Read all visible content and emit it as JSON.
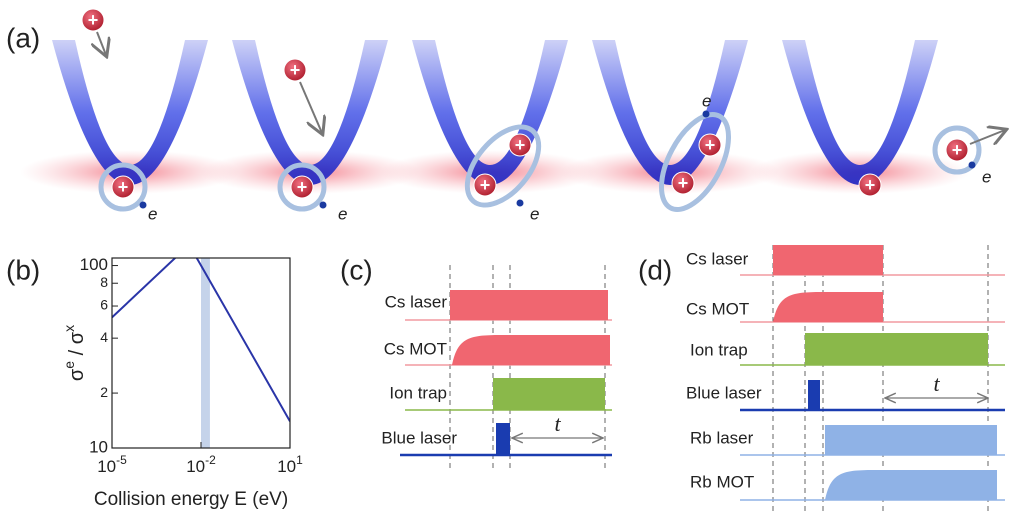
{
  "panel_a": {
    "label": "(a)",
    "ion_symbol": "+",
    "electron": "e"
  },
  "panel_b": {
    "label": "(b)"
  },
  "chart_data": {
    "type": "line",
    "xlabel": "Collision energy E (eV)",
    "ylabel": [
      "σ",
      "e",
      " / σ",
      "x"
    ],
    "x": [
      1e-05,
      0.004,
      10
    ],
    "series": [
      {
        "color": "#2a35a8",
        "values": [
          52,
          130,
          14
        ]
      }
    ],
    "band": [
      0.01,
      0.02
    ],
    "band_color": "#c5d3ea",
    "xlim": [
      1e-05,
      10
    ],
    "ylim": [
      10,
      110
    ],
    "xlog": true,
    "ylog": true,
    "xticks": [
      {
        "value": 1e-05,
        "label": "10",
        "sup": "-5"
      },
      {
        "value": 0.01,
        "label": "10",
        "sup": "-2"
      },
      {
        "value": 10,
        "label": "10",
        "sup": "1"
      }
    ],
    "yticks": [
      10,
      {
        "value": 20,
        "label": "2"
      },
      {
        "value": 40,
        "label": "4"
      },
      {
        "value": 60,
        "label": "6"
      },
      {
        "value": 80,
        "label": "8"
      },
      100
    ]
  },
  "panel_c": {
    "label": "(c)",
    "rows": [
      "Cs laser",
      "Cs MOT",
      "Ion trap",
      "Blue laser"
    ],
    "interval": "t"
  },
  "panel_d": {
    "label": "(d)",
    "rows": [
      "Cs laser",
      "Cs MOT",
      "Ion trap",
      "Blue laser",
      "Rb  laser",
      "Rb MOT"
    ],
    "interval": "t"
  }
}
